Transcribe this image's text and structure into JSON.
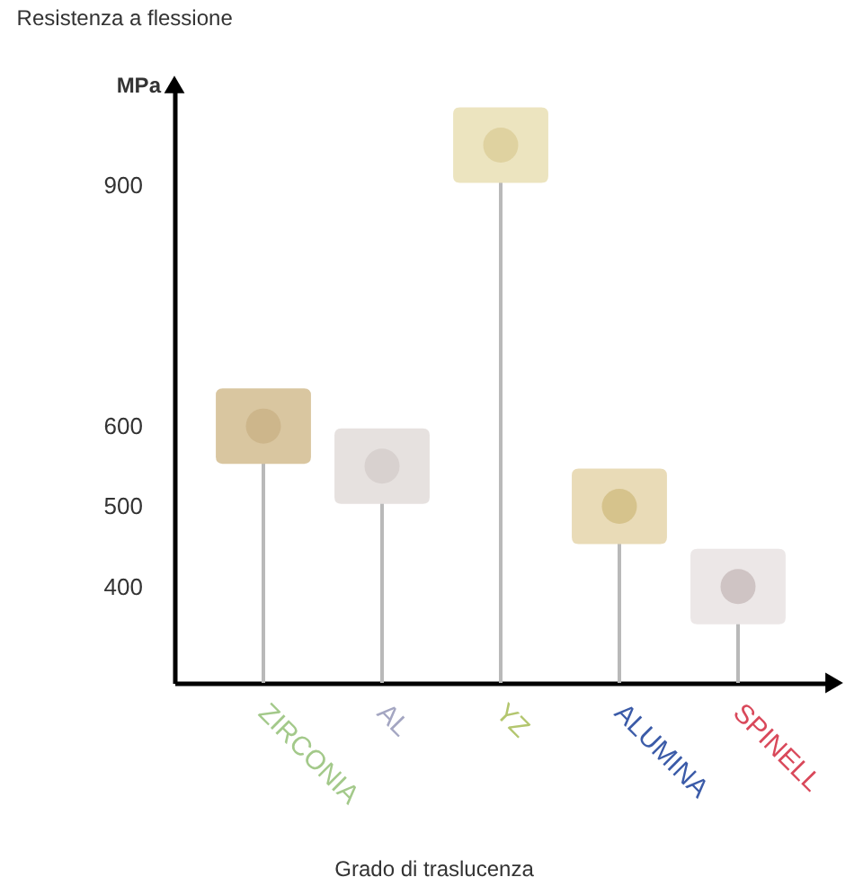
{
  "chart_data": {
    "type": "lollipop",
    "title": "Resistenza a flessione",
    "xlabel": "Grado di traslucenza",
    "ylabel": "MPa",
    "categories": [
      "ZIRCONIA",
      "AL",
      "YZ",
      "ALUMINA",
      "SPINELL"
    ],
    "values": [
      600,
      550,
      950,
      500,
      400
    ],
    "colors": [
      "#cdb68b",
      "#d8d1cf",
      "#dfd2a0",
      "#d6c38c",
      "#cfc4c4"
    ],
    "marker": "circle",
    "ylim": [
      280,
      1030
    ],
    "yticks": [
      400,
      500,
      600,
      900
    ]
  }
}
